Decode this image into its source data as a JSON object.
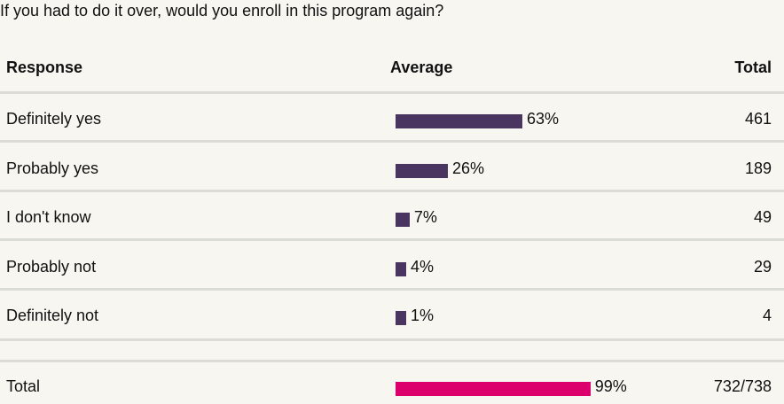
{
  "question": "If you had to do it over, would you enroll in this program again?",
  "header": {
    "response": "Response",
    "average": "Average",
    "total": "Total"
  },
  "colors": {
    "bar": "#4a3560",
    "total_bar": "#dc006c",
    "background": "#f7f6f0"
  },
  "chart_data": {
    "type": "bar",
    "orientation": "horizontal",
    "categories": [
      "Definitely yes",
      "Probably yes",
      "I don't know",
      "Probably not",
      "Definitely not"
    ],
    "values": [
      63,
      26,
      7,
      4,
      1
    ],
    "value_labels": [
      "63%",
      "26%",
      "7%",
      "4%",
      "1%"
    ],
    "totals": [
      "461",
      "189",
      "49",
      "29",
      "4"
    ],
    "summary": {
      "label": "Total",
      "value": 99,
      "value_label": "99%",
      "total": "732/738"
    }
  }
}
